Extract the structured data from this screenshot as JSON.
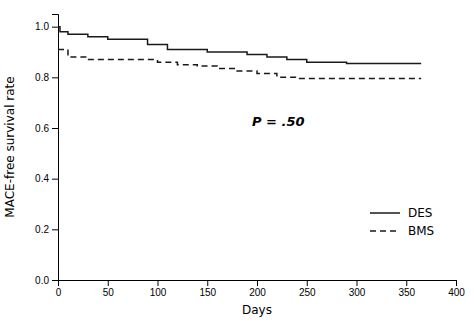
{
  "chart_data": {
    "type": "step",
    "xlabel": "Days",
    "ylabel": "MACE-free survival rate",
    "xlim": [
      0,
      400
    ],
    "ylim": [
      0,
      1.05
    ],
    "xticks": [
      0,
      50,
      100,
      150,
      200,
      250,
      300,
      350,
      400
    ],
    "yticks": [
      {
        "value": 0,
        "label": "0.0"
      },
      0.2,
      0.4,
      0.6,
      0.8,
      {
        "value": 1.0,
        "label": "1.0"
      }
    ],
    "series": [
      {
        "name": "DES",
        "color": "#1a1a1a",
        "line_style": "solid",
        "x": [
          0,
          2,
          10,
          30,
          50,
          70,
          90,
          110,
          130,
          150,
          170,
          190,
          210,
          230,
          250,
          270,
          290,
          310,
          330,
          350,
          365
        ],
        "values": [
          1.0,
          0.98,
          0.97,
          0.96,
          0.95,
          0.95,
          0.93,
          0.91,
          0.91,
          0.9,
          0.9,
          0.89,
          0.88,
          0.87,
          0.86,
          0.86,
          0.855,
          0.855,
          0.855,
          0.855,
          0.855
        ]
      },
      {
        "name": "BMS",
        "color": "#1a1a1a",
        "line_style": "dashed",
        "x": [
          0,
          2,
          10,
          30,
          50,
          70,
          100,
          120,
          140,
          160,
          180,
          200,
          220,
          240,
          260,
          280,
          300,
          320,
          340,
          360,
          365
        ],
        "values": [
          0.91,
          0.91,
          0.88,
          0.87,
          0.87,
          0.87,
          0.86,
          0.85,
          0.845,
          0.835,
          0.825,
          0.815,
          0.8,
          0.795,
          0.795,
          0.795,
          0.795,
          0.795,
          0.795,
          0.795,
          0.795
        ]
      }
    ],
    "annotations": [
      {
        "text": "P = .50",
        "x": 195,
        "y": 0.62
      }
    ],
    "grid": false,
    "legend": "lower right"
  }
}
